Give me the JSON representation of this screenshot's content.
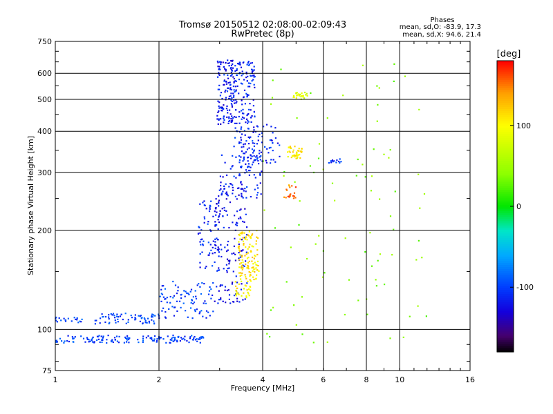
{
  "chart_data": {
    "type": "scatter",
    "title": "Tromsø 20150512 02:08:00-02:09:43",
    "subtitle": "RwPretec (8p)",
    "xlabel": "Frequency [MHz]",
    "ylabel": "Stationary phase Virtual Height [km]",
    "x_scale": "log",
    "y_scale": "log",
    "xlim": [
      1,
      16
    ],
    "ylim": [
      75,
      750
    ],
    "x_ticks": [
      1,
      2,
      4,
      6,
      8,
      10,
      16
    ],
    "x_tick_labels": [
      "1",
      "2",
      "4",
      "6",
      "8",
      "10",
      "16"
    ],
    "x_grid": [
      2,
      4,
      6,
      8,
      10
    ],
    "y_ticks": [
      75,
      100,
      200,
      300,
      400,
      500,
      600,
      750
    ],
    "y_tick_labels": [
      "75",
      "100",
      "200",
      "300",
      "400",
      "500",
      "600",
      "750"
    ],
    "y_grid": [
      100,
      200,
      300,
      400,
      500,
      600
    ],
    "grid": true,
    "legend_title": "Phases",
    "legend_lines": [
      "mean, sd,O: -83.9, 17.3",
      "mean, sd,X:  94.6, 21.4"
    ],
    "colorbar": {
      "label": "[deg]",
      "range": [
        -180,
        180
      ],
      "ticks": [
        100,
        0,
        -100
      ],
      "tick_labels": [
        "100",
        "0",
        "-100"
      ]
    },
    "point_groups": [
      {
        "x_range": [
          1.0,
          2.7
        ],
        "y_range": [
          91,
          96
        ],
        "phase": -100,
        "count": 150
      },
      {
        "x_range": [
          1.0,
          1.2
        ],
        "y_range": [
          105,
          109
        ],
        "phase": -95,
        "count": 20
      },
      {
        "x_range": [
          1.3,
          2.0
        ],
        "y_range": [
          104,
          112
        ],
        "phase": -100,
        "count": 70
      },
      {
        "x_range": [
          2.0,
          2.9
        ],
        "y_range": [
          108,
          140
        ],
        "phase": -100,
        "count": 90
      },
      {
        "x_range": [
          2.6,
          3.0
        ],
        "y_range": [
          150,
          250
        ],
        "phase": -110,
        "count": 70
      },
      {
        "x_range": [
          2.9,
          3.6
        ],
        "y_range": [
          120,
          280
        ],
        "phase": -120,
        "count": 160
      },
      {
        "x_range": [
          3.0,
          4.0
        ],
        "y_range": [
          250,
          340
        ],
        "phase": -110,
        "count": 70
      },
      {
        "x_range": [
          2.95,
          3.35
        ],
        "y_range": [
          420,
          660
        ],
        "phase": -118,
        "count": 150
      },
      {
        "x_range": [
          3.3,
          3.8
        ],
        "y_range": [
          300,
          660
        ],
        "phase": -110,
        "count": 160
      },
      {
        "x_range": [
          3.5,
          4.5
        ],
        "y_range": [
          320,
          420
        ],
        "phase": -110,
        "count": 60
      },
      {
        "x_range": [
          3.4,
          3.9
        ],
        "y_range": [
          140,
          200
        ],
        "phase": 110,
        "count": 120
      },
      {
        "x_range": [
          3.3,
          3.7
        ],
        "y_range": [
          125,
          140
        ],
        "phase": 100,
        "count": 30
      },
      {
        "x_range": [
          4.7,
          5.2
        ],
        "y_range": [
          330,
          360
        ],
        "phase": 105,
        "count": 40
      },
      {
        "x_range": [
          4.9,
          5.4
        ],
        "y_range": [
          500,
          525
        ],
        "phase": 85,
        "count": 25
      },
      {
        "x_range": [
          4.6,
          5.0
        ],
        "y_range": [
          250,
          275
        ],
        "phase": 150,
        "count": 20
      },
      {
        "x_range": [
          6.2,
          6.8
        ],
        "y_range": [
          320,
          330
        ],
        "phase": -110,
        "count": 12
      },
      {
        "x_range": [
          4.0,
          12.0
        ],
        "y_range": [
          90,
          650
        ],
        "phase": 40,
        "count": 90
      }
    ]
  }
}
